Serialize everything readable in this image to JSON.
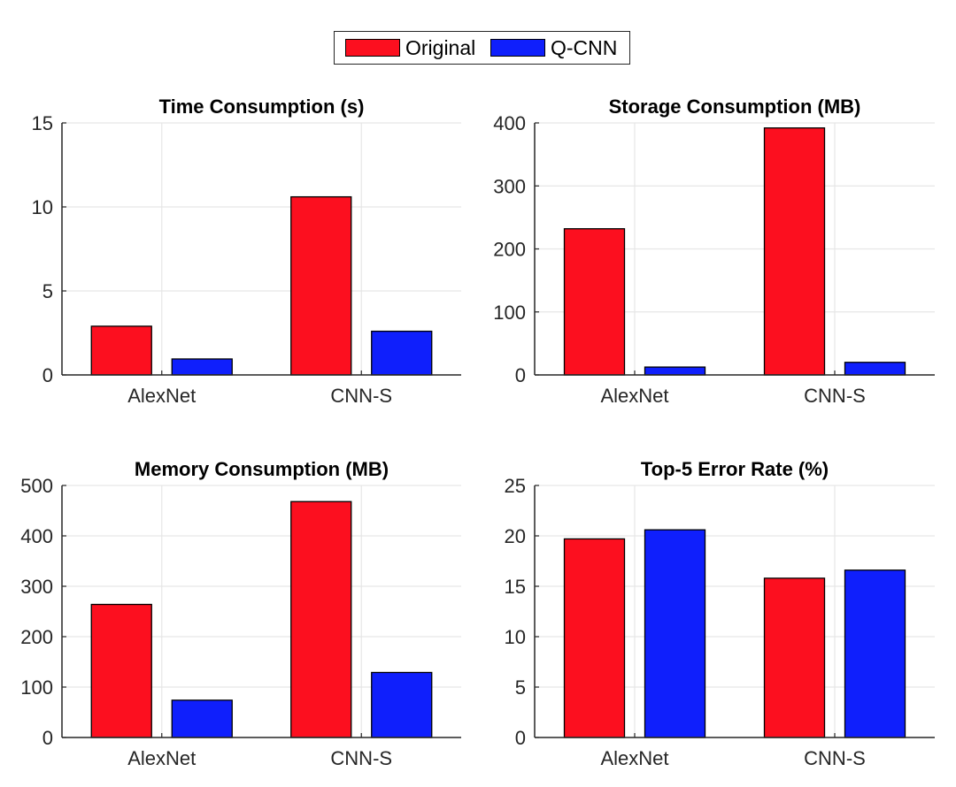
{
  "legend": {
    "items": [
      {
        "label": "Original",
        "color": "#fc0f1f"
      },
      {
        "label": "Q-CNN",
        "color": "#0f1ffc"
      }
    ],
    "placement": "top-center"
  },
  "chart_data": [
    {
      "type": "bar",
      "title": "Time Consumption (s)",
      "categories": [
        "AlexNet",
        "CNN-S"
      ],
      "series": [
        {
          "name": "Original",
          "color": "#fc0f1f",
          "values": [
            2.9,
            10.6
          ]
        },
        {
          "name": "Q-CNN",
          "color": "#0f1ffc",
          "values": [
            0.95,
            2.6
          ]
        }
      ],
      "ylim": [
        0,
        15
      ],
      "yticks": [
        0,
        5,
        10,
        15
      ],
      "grid": true
    },
    {
      "type": "bar",
      "title": "Storage Consumption (MB)",
      "categories": [
        "AlexNet",
        "CNN-S"
      ],
      "series": [
        {
          "name": "Original",
          "color": "#fc0f1f",
          "values": [
            232,
            392
          ]
        },
        {
          "name": "Q-CNN",
          "color": "#0f1ffc",
          "values": [
            12.5,
            20
          ]
        }
      ],
      "ylim": [
        0,
        400
      ],
      "yticks": [
        0,
        100,
        200,
        300,
        400
      ],
      "grid": true
    },
    {
      "type": "bar",
      "title": "Memory Consumption (MB)",
      "categories": [
        "AlexNet",
        "CNN-S"
      ],
      "series": [
        {
          "name": "Original",
          "color": "#fc0f1f",
          "values": [
            264,
            468
          ]
        },
        {
          "name": "Q-CNN",
          "color": "#0f1ffc",
          "values": [
            74,
            129
          ]
        }
      ],
      "ylim": [
        0,
        500
      ],
      "yticks": [
        0,
        100,
        200,
        300,
        400,
        500
      ],
      "grid": true
    },
    {
      "type": "bar",
      "title": "Top-5 Error Rate (%)",
      "categories": [
        "AlexNet",
        "CNN-S"
      ],
      "series": [
        {
          "name": "Original",
          "color": "#fc0f1f",
          "values": [
            19.7,
            15.8
          ]
        },
        {
          "name": "Q-CNN",
          "color": "#0f1ffc",
          "values": [
            20.6,
            16.6
          ]
        }
      ],
      "ylim": [
        0,
        25
      ],
      "yticks": [
        0,
        5,
        10,
        15,
        20,
        25
      ],
      "grid": true
    }
  ]
}
